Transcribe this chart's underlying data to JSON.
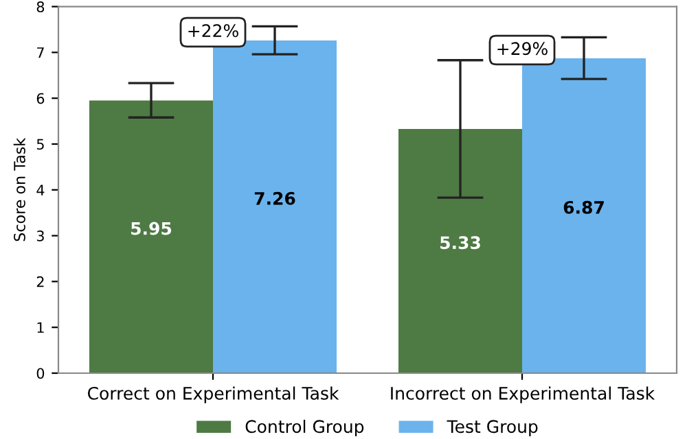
{
  "chart_data": {
    "type": "bar",
    "ylabel": "Score on Task",
    "categories": [
      "Correct on Experimental Task",
      "Incorrect on Experimental Task"
    ],
    "series": [
      {
        "name": "Control Group",
        "color": "#4e7a44",
        "values": [
          5.95,
          5.33
        ],
        "errors": [
          [
            5.58,
            6.33
          ],
          [
            3.83,
            6.83
          ]
        ]
      },
      {
        "name": "Test Group",
        "color": "#6bb3ec",
        "values": [
          7.26,
          6.87
        ],
        "errors": [
          [
            6.96,
            7.57
          ],
          [
            6.42,
            7.33
          ]
        ]
      }
    ],
    "annotations": [
      "+22%",
      "+29%"
    ],
    "ylim": [
      0,
      8
    ],
    "yticks": [
      0,
      1,
      2,
      3,
      4,
      5,
      6,
      7,
      8
    ],
    "data_labels": true,
    "legend": "bottom",
    "grid": false
  }
}
